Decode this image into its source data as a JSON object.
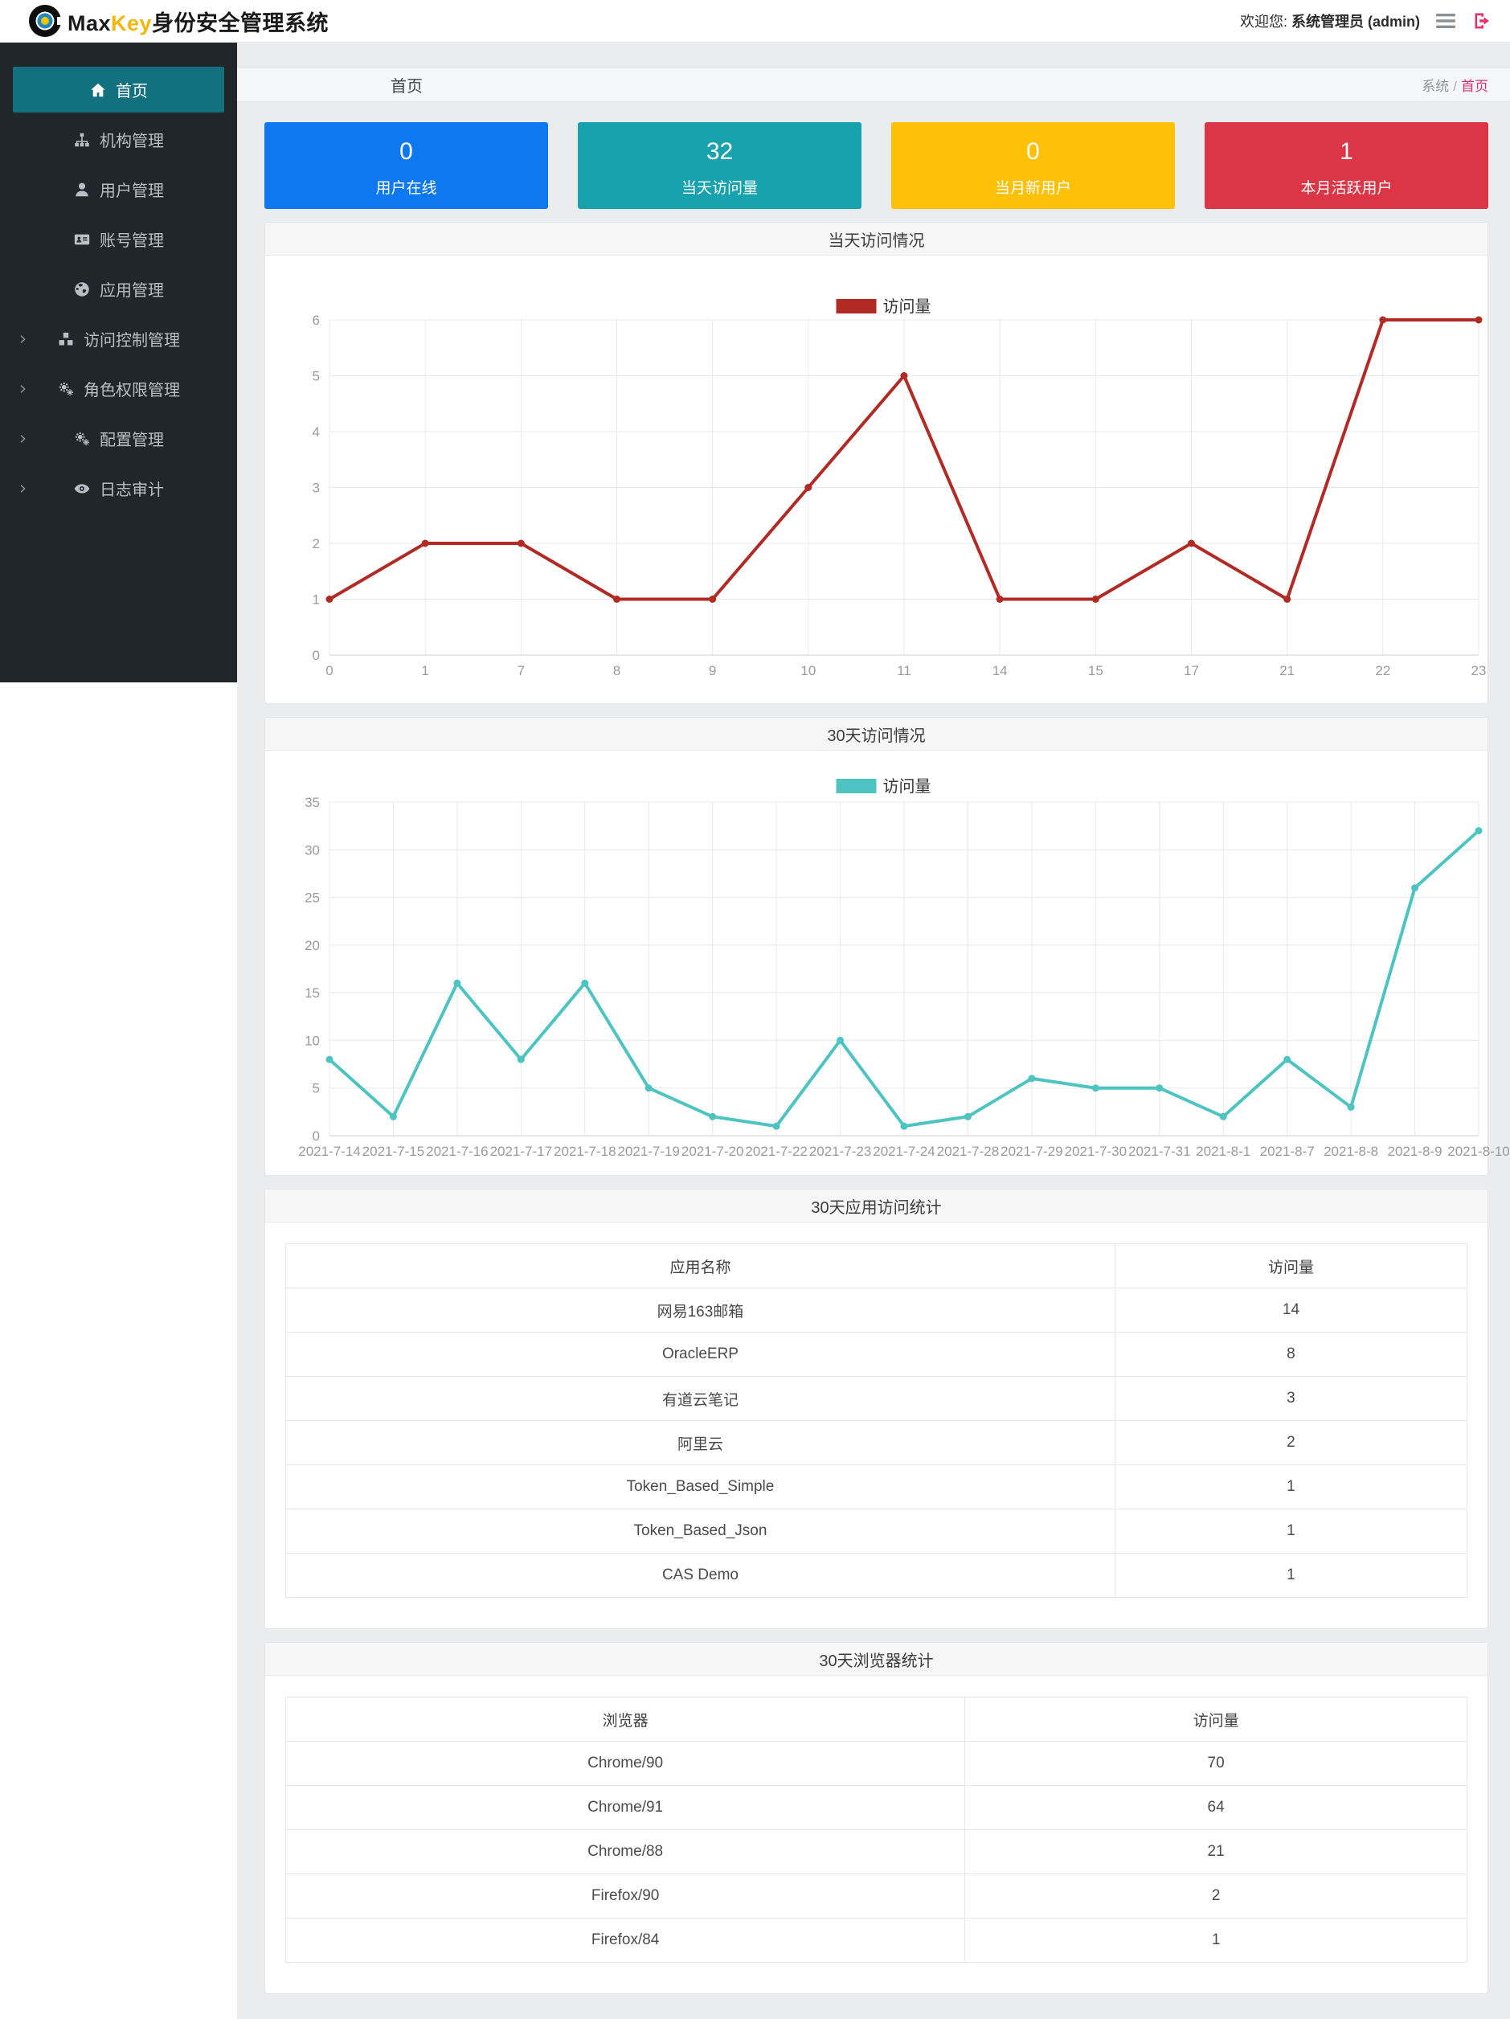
{
  "header": {
    "brand_max": "Max",
    "brand_key": "Key",
    "brand_suffix": "身份安全管理系统",
    "welcome_prefix": "欢迎您:",
    "welcome_user": "系统管理员 (admin)"
  },
  "sidebar": {
    "items": [
      {
        "label": "首页",
        "icon": "home",
        "active": true,
        "expandable": false
      },
      {
        "label": "机构管理",
        "icon": "sitemap",
        "active": false,
        "expandable": false
      },
      {
        "label": "用户管理",
        "icon": "user",
        "active": false,
        "expandable": false
      },
      {
        "label": "账号管理",
        "icon": "idcard",
        "active": false,
        "expandable": false
      },
      {
        "label": "应用管理",
        "icon": "globe",
        "active": false,
        "expandable": false
      },
      {
        "label": "访问控制管理",
        "icon": "cubes",
        "active": false,
        "expandable": true
      },
      {
        "label": "角色权限管理",
        "icon": "gears",
        "active": false,
        "expandable": true
      },
      {
        "label": "配置管理",
        "icon": "gears",
        "active": false,
        "expandable": true
      },
      {
        "label": "日志审计",
        "icon": "eye",
        "active": false,
        "expandable": true
      }
    ]
  },
  "breadcrumb": {
    "page": "首页",
    "root": "系统",
    "sep": "/",
    "current": "首页"
  },
  "stat_cards": [
    {
      "value": "0",
      "label": "用户在线",
      "color": "#0d78f0"
    },
    {
      "value": "32",
      "label": "当天访问量",
      "color": "#17a2ad"
    },
    {
      "value": "0",
      "label": "当月新用户",
      "color": "#ffc107"
    },
    {
      "value": "1",
      "label": "本月活跃用户",
      "color": "#dc3545"
    }
  ],
  "chart_data": [
    {
      "type": "line",
      "title": "当天访问情况",
      "legend": "访问量",
      "color": "#b22a24",
      "categories": [
        "0",
        "1",
        "7",
        "8",
        "9",
        "10",
        "11",
        "14",
        "15",
        "17",
        "21",
        "22",
        "23"
      ],
      "values": [
        1,
        2,
        2,
        1,
        1,
        3,
        5,
        1,
        1,
        2,
        1,
        6,
        6
      ],
      "y_ticks": [
        0,
        1,
        2,
        3,
        4,
        5,
        6
      ],
      "ylim": [
        0,
        6
      ],
      "grid": true,
      "legend_position": "top-center"
    },
    {
      "type": "line",
      "title": "30天访问情况",
      "legend": "访问量",
      "color": "#4ec4c2",
      "categories": [
        "2021-7-14",
        "2021-7-15",
        "2021-7-16",
        "2021-7-17",
        "2021-7-18",
        "2021-7-19",
        "2021-7-20",
        "2021-7-22",
        "2021-7-23",
        "2021-7-24",
        "2021-7-28",
        "2021-7-29",
        "2021-7-30",
        "2021-7-31",
        "2021-8-1",
        "2021-8-7",
        "2021-8-8",
        "2021-8-9",
        "2021-8-10"
      ],
      "values": [
        8,
        2,
        16,
        8,
        16,
        5,
        2,
        1,
        10,
        1,
        2,
        6,
        5,
        5,
        2,
        8,
        3,
        26,
        32
      ],
      "y_ticks": [
        0,
        5,
        10,
        15,
        20,
        25,
        30,
        35
      ],
      "ylim": [
        0,
        35
      ],
      "grid": true,
      "legend_position": "top-center"
    }
  ],
  "tables": [
    {
      "title": "30天应用访问统计",
      "columns": [
        "应用名称",
        "访问量"
      ],
      "rows": [
        [
          "网易163邮箱",
          "14"
        ],
        [
          "OracleERP",
          "8"
        ],
        [
          "有道云笔记",
          "3"
        ],
        [
          "阿里云",
          "2"
        ],
        [
          "Token_Based_Simple",
          "1"
        ],
        [
          "Token_Based_Json",
          "1"
        ],
        [
          "CAS Demo",
          "1"
        ]
      ]
    },
    {
      "title": "30天浏览器统计",
      "columns": [
        "浏览器",
        "访问量"
      ],
      "rows": [
        [
          "Chrome/90",
          "70"
        ],
        [
          "Chrome/91",
          "64"
        ],
        [
          "Chrome/88",
          "21"
        ],
        [
          "Firefox/90",
          "2"
        ],
        [
          "Firefox/84",
          "1"
        ]
      ]
    }
  ]
}
